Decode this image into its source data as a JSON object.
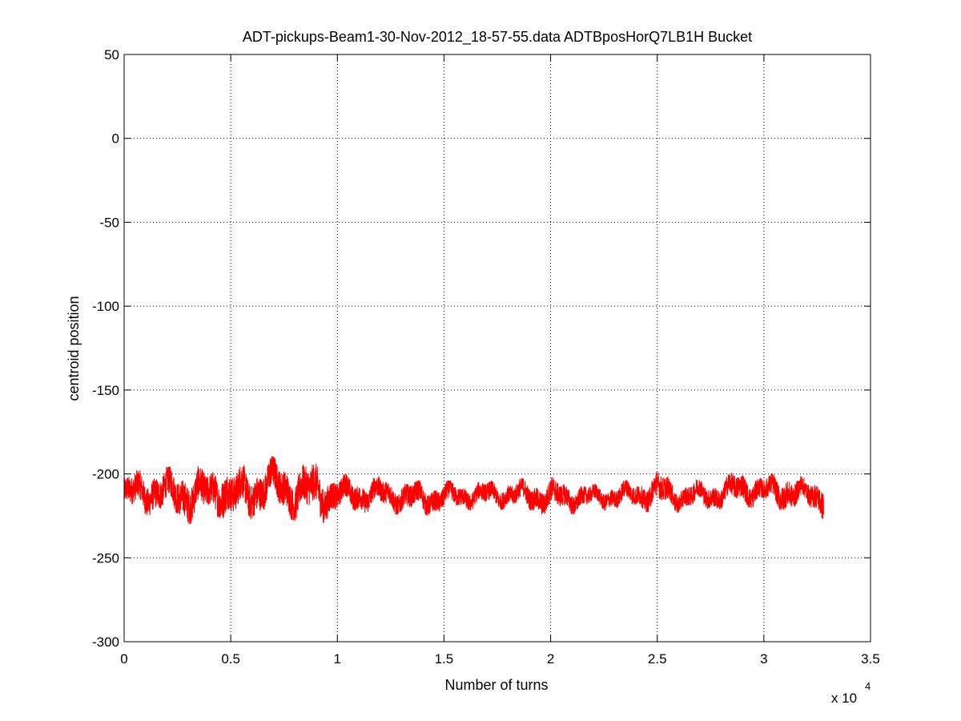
{
  "chart_data": {
    "type": "line",
    "title": "ADT-pickups-Beam1-30-Nov-2012_18-57-55.data    ADTBposHorQ7LB1H Bucket",
    "xlabel": "Number of turns",
    "ylabel": "centroid position",
    "x_exponent_label": "x 10",
    "x_exponent_power": "4",
    "xlim": [
      0,
      3.5
    ],
    "ylim": [
      -300,
      50
    ],
    "x_ticks": [
      0,
      0.5,
      1,
      1.5,
      2,
      2.5,
      3,
      3.5
    ],
    "x_tick_labels": [
      "0",
      "0.5",
      "1",
      "1.5",
      "2",
      "2.5",
      "3",
      "3.5"
    ],
    "y_ticks": [
      50,
      0,
      -50,
      -100,
      -150,
      -200,
      -250,
      -300
    ],
    "y_tick_labels": [
      "50",
      "0",
      "-50",
      "-100",
      "-150",
      "-200",
      "-250",
      "-300"
    ],
    "grid": true,
    "grid_style": "dotted",
    "series": [
      {
        "color": "#ff0000",
        "x_range": [
          0,
          3.28
        ],
        "mean": -211,
        "envelope_x": [
          0,
          0.1,
          0.2,
          0.3,
          0.4,
          0.46,
          0.5,
          0.6,
          0.68,
          0.8,
          0.92,
          1.0,
          1.2,
          1.4,
          1.6,
          1.8,
          2.0,
          2.2,
          2.4,
          2.5,
          2.6,
          2.8,
          2.9,
          3.0,
          3.1,
          3.2,
          3.28
        ],
        "envelope_upper": [
          -200,
          -195,
          -196,
          -194,
          -197,
          -187,
          -196,
          -193,
          -189,
          -193,
          -192,
          -200,
          -201,
          -204,
          -204,
          -203,
          -202,
          -206,
          -203,
          -197,
          -204,
          -202,
          -196,
          -201,
          -197,
          -203,
          -198
        ],
        "envelope_lower": [
          -226,
          -225,
          -226,
          -230,
          -228,
          -226,
          -232,
          -228,
          -222,
          -228,
          -230,
          -225,
          -223,
          -226,
          -222,
          -221,
          -226,
          -222,
          -222,
          -223,
          -223,
          -222,
          -220,
          -220,
          -223,
          -222,
          -227
        ]
      }
    ]
  }
}
